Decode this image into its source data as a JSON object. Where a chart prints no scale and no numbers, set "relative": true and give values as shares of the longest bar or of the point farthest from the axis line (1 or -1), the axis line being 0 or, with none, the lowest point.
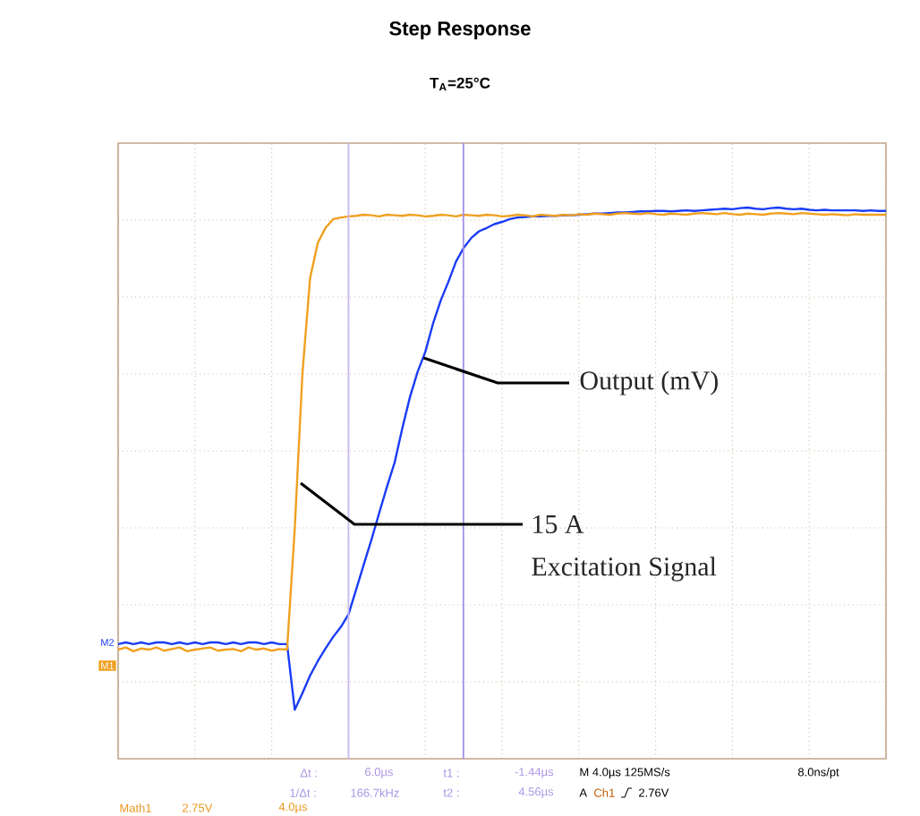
{
  "chart_data": {
    "type": "line",
    "title": "Step Response",
    "subtitle": "T$_{A}$=25°C",
    "relative": true,
    "grid": true,
    "categories": [
      null,
      null,
      null,
      null,
      null,
      null,
      null,
      null,
      null,
      null,
      null,
      null,
      null,
      null,
      null,
      null,
      null,
      null,
      null,
      null,
      null,
      null,
      null,
      null,
      null,
      null,
      null,
      null,
      null,
      null,
      null,
      null,
      null,
      null,
      null,
      null,
      null,
      null,
      null,
      null,
      null,
      null,
      null,
      null,
      null,
      null,
      null,
      null,
      null,
      null,
      null,
      null,
      null,
      null,
      null,
      null,
      null,
      null,
      null,
      null,
      null,
      null,
      null,
      null,
      null,
      null,
      null,
      null,
      null,
      null,
      null,
      null,
      null,
      null,
      null,
      null,
      null,
      null,
      null,
      null,
      null,
      null,
      null,
      null,
      null,
      null,
      null,
      null,
      null,
      null,
      null,
      null,
      null,
      null,
      null,
      null,
      null,
      null,
      null,
      null,
      null
    ],
    "series": [
      {
        "color": "#1a3cf5",
        "values": [
          0.208,
          0.211,
          0.208,
          0.211,
          0.208,
          0.211,
          0.211,
          0.208,
          0.211,
          0.208,
          0.211,
          0.208,
          0.211,
          0.211,
          0.208,
          0.211,
          0.208,
          0.211,
          0.211,
          0.208,
          0.211,
          0.208,
          0.208,
          0.089,
          0.119,
          0.151,
          0.177,
          0.2,
          0.221,
          0.239,
          0.262,
          0.307,
          0.353,
          0.398,
          0.446,
          0.493,
          0.537,
          0.599,
          0.656,
          0.702,
          0.738,
          0.789,
          0.831,
          0.865,
          0.902,
          0.927,
          0.945,
          0.957,
          0.963,
          0.97,
          0.974,
          0.979,
          0.982,
          0.983,
          0.984,
          0.984,
          0.985,
          0.985,
          0.986,
          0.986,
          0.987,
          0.988,
          0.989,
          0.989,
          0.99,
          0.991,
          0.991,
          0.992,
          0.993,
          0.993,
          0.994,
          0.994,
          0.993,
          0.994,
          0.995,
          0.994,
          0.995,
          0.996,
          0.997,
          0.998,
          0.997,
          0.999,
          1.0,
          0.998,
          0.997,
          0.999,
          1.0,
          0.998,
          0.997,
          0.998,
          0.996,
          0.995,
          0.996,
          0.995,
          0.995,
          0.995,
          0.995,
          0.994,
          0.995,
          0.994,
          0.994
        ]
      },
      {
        "color": "#f0a020",
        "values": [
          0.198,
          0.202,
          0.195,
          0.2,
          0.198,
          0.202,
          0.196,
          0.199,
          0.202,
          0.195,
          0.198,
          0.2,
          0.202,
          0.196,
          0.198,
          0.199,
          0.195,
          0.202,
          0.198,
          0.2,
          0.196,
          0.199,
          0.198,
          0.417,
          0.699,
          0.872,
          0.936,
          0.963,
          0.979,
          0.982,
          0.984,
          0.985,
          0.987,
          0.986,
          0.984,
          0.987,
          0.986,
          0.985,
          0.987,
          0.986,
          0.984,
          0.985,
          0.987,
          0.986,
          0.984,
          0.987,
          0.986,
          0.985,
          0.987,
          0.986,
          0.984,
          0.985,
          0.987,
          0.986,
          0.984,
          0.987,
          0.986,
          0.985,
          0.987,
          0.986,
          0.988,
          0.987,
          0.989,
          0.988,
          0.987,
          0.989,
          0.99,
          0.989,
          0.988,
          0.99,
          0.988,
          0.987,
          0.989,
          0.988,
          0.987,
          0.989,
          0.99,
          0.989,
          0.988,
          0.99,
          0.988,
          0.987,
          0.989,
          0.988,
          0.987,
          0.989,
          0.99,
          0.989,
          0.988,
          0.99,
          0.989,
          0.988,
          0.987,
          0.988,
          0.987,
          0.986,
          0.988,
          0.987,
          0.987,
          0.987,
          0.987
        ]
      }
    ],
    "annotations": [
      "Output (mV)",
      "15 A",
      "Excitation Signal",
      "Δt :",
      "6.0µs",
      "t1 :",
      "-1.44µs",
      "M 4.0µs 125MS/s",
      "8.0ns/pt",
      "1/Δt :",
      "166.7kHz",
      "t2 :",
      "4.56µs",
      "A",
      "Ch1",
      "2.76V",
      "Math1",
      "2.75V",
      "4.0µs",
      "M2",
      "M1"
    ]
  }
}
